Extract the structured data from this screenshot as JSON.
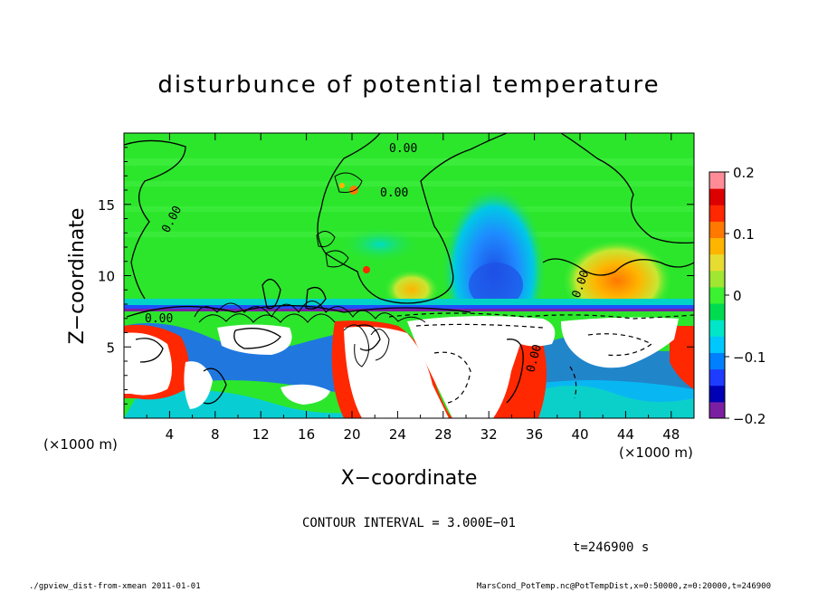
{
  "chart_data": {
    "type": "heatmap",
    "title": "disturbunce of potential temperature",
    "xlabel": "X−coordinate",
    "ylabel": "Z−coordinate",
    "x_unit_left": "(×1000 m)",
    "x_unit_right": "(×1000 m)",
    "x_ticks": [
      "4",
      "8",
      "12",
      "16",
      "20",
      "24",
      "28",
      "32",
      "36",
      "40",
      "44",
      "48"
    ],
    "y_ticks": [
      "5",
      "10",
      "15"
    ],
    "xlim": [
      0,
      50
    ],
    "ylim": [
      0,
      20
    ],
    "colorbar": {
      "range": [
        -0.2,
        0.2
      ],
      "tick_labels": [
        "0.2",
        "0.1",
        "0",
        "−0.1",
        "−0.2"
      ],
      "colors": [
        "#7b1fa2",
        "#0000b4",
        "#1e3cff",
        "#0080ff",
        "#00c8ff",
        "#00e6c8",
        "#00dc50",
        "#3cf032",
        "#a0e632",
        "#e6dc32",
        "#ffb400",
        "#ff7800",
        "#ff2800",
        "#dc0000",
        "#ff8c96"
      ]
    },
    "contour_labels": [
      "0.00",
      "0.00",
      "0.00",
      "0.00",
      "0.00",
      "0.00"
    ],
    "contour_interval_text": "CONTOUR INTERVAL = 3.000E−01",
    "time_label": "t=246900 s"
  },
  "footer": {
    "left": "./gpview_dist-from-xmean  2011-01-01",
    "right": "MarsCond_PotTemp.nc@PotTempDist,x=0:50000,z=0:20000,t=246900"
  },
  "colors": {
    "background_green": "#2ce62c",
    "stratosphere_green": "#46f046",
    "blue_column": "#1e64ff",
    "warm_blob": "#ffb400",
    "white_region": "#ffffff"
  }
}
